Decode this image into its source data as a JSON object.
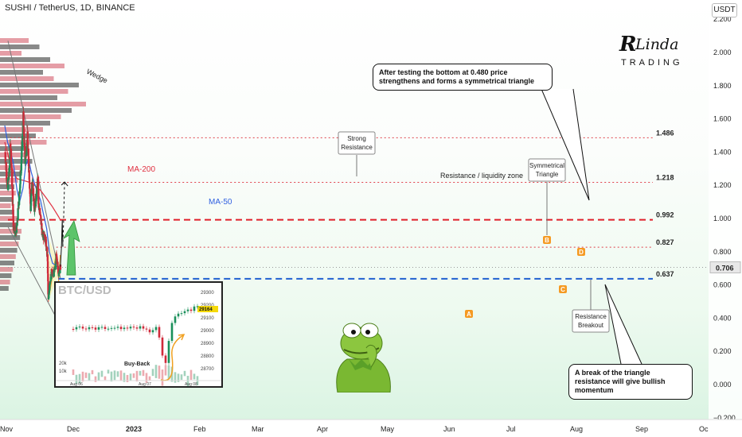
{
  "header": {
    "title": "SUSHI / TetherUS, 1D, BINANCE",
    "currency": "USDT"
  },
  "logo": {
    "text_top": "RLinda",
    "text_bottom": "TRADING"
  },
  "callouts": {
    "top": "After testing the bottom at 0.480 price strengthens and forms a symmetrical triangle",
    "bottom": "A break of the triangle resistance will give bullish momentum"
  },
  "chart_data": {
    "type": "line",
    "title": "SUSHI / TetherUS, 1D, BINANCE",
    "y_axis": {
      "ticks": [
        -0.2,
        0.0,
        0.2,
        0.4,
        0.6,
        0.8,
        1.0,
        1.2,
        1.4,
        1.6,
        1.8,
        2.0,
        2.2
      ],
      "tick_labels": [
        "−0.200",
        "0.000",
        "0.200",
        "0.400",
        "0.600",
        "0.800",
        "1.000",
        "1.200",
        "1.400",
        "1.600",
        "1.800",
        "2.000",
        "2.200"
      ],
      "ylim": [
        -0.2,
        2.2
      ],
      "last_price": 0.706,
      "last_price_label": "0.706"
    },
    "x_axis": {
      "labels": [
        "Nov",
        "Dec",
        "2023",
        "Feb",
        "Mar",
        "Apr",
        "May",
        "Jun",
        "Jul",
        "Aug",
        "Sep",
        "Oc"
      ]
    },
    "levels": [
      {
        "value": 1.486,
        "label": "1.486",
        "color": "#e0404a",
        "style": "dotted"
      },
      {
        "value": 1.218,
        "label": "1.218",
        "color": "#e0404a",
        "style": "dotted"
      },
      {
        "value": 0.992,
        "label": "0.992",
        "color": "#e0202a",
        "style": "dashed"
      },
      {
        "value": 0.827,
        "label": "0.827",
        "color": "#e0404a",
        "style": "dotted"
      },
      {
        "value": 0.637,
        "label": "0.637",
        "color": "#2060d0",
        "style": "dashed"
      }
    ],
    "series": [
      {
        "name": "MA-200",
        "color": "#e03040"
      },
      {
        "name": "MA-50",
        "color": "#3060e0"
      }
    ],
    "price_approx": [
      {
        "date": "2022-11-03",
        "value": 1.4
      },
      {
        "date": "2022-11-15",
        "value": 1.18
      },
      {
        "date": "2022-11-24",
        "value": 1.28
      },
      {
        "date": "2022-11-30",
        "value": 1.46
      },
      {
        "date": "2022-12-08",
        "value": 1.22
      },
      {
        "date": "2022-12-15",
        "value": 0.95
      },
      {
        "date": "2022-12-30",
        "value": 0.92
      },
      {
        "date": "2023-01-12",
        "value": 1.1
      },
      {
        "date": "2023-01-22",
        "value": 1.3
      },
      {
        "date": "2023-02-03",
        "value": 1.6
      },
      {
        "date": "2023-02-12",
        "value": 1.35
      },
      {
        "date": "2023-02-24",
        "value": 1.48
      },
      {
        "date": "2023-03-06",
        "value": 1.24
      },
      {
        "date": "2023-03-12",
        "value": 1.06
      },
      {
        "date": "2023-03-20",
        "value": 1.22
      },
      {
        "date": "2023-04-01",
        "value": 1.06
      },
      {
        "date": "2023-04-12",
        "value": 1.16
      },
      {
        "date": "2023-04-18",
        "value": 1.23
      },
      {
        "date": "2023-04-22",
        "value": 1.05
      },
      {
        "date": "2023-05-01",
        "value": 1.04
      },
      {
        "date": "2023-05-09",
        "value": 0.9
      },
      {
        "date": "2023-05-26",
        "value": 0.88
      },
      {
        "date": "2023-06-05",
        "value": 0.78
      },
      {
        "date": "2023-06-10",
        "value": 0.5
      },
      {
        "date": "2023-06-15",
        "value": 0.58
      },
      {
        "date": "2023-06-25",
        "value": 0.68
      },
      {
        "date": "2023-07-05",
        "value": 0.66
      },
      {
        "date": "2023-07-14",
        "value": 0.7
      },
      {
        "date": "2023-07-20",
        "value": 0.78
      },
      {
        "date": "2023-07-28",
        "value": 0.7
      },
      {
        "date": "2023-08-03",
        "value": 0.66
      },
      {
        "date": "2023-08-10",
        "value": 0.71
      }
    ],
    "ma200_approx": [
      {
        "date": "2022-11-01",
        "value": 1.46
      },
      {
        "date": "2022-12-01",
        "value": 1.32
      },
      {
        "date": "2023-01-01",
        "value": 1.24
      },
      {
        "date": "2023-02-01",
        "value": 1.23
      },
      {
        "date": "2023-03-01",
        "value": 1.22
      },
      {
        "date": "2023-04-01",
        "value": 1.2
      },
      {
        "date": "2023-05-01",
        "value": 1.17
      },
      {
        "date": "2023-06-01",
        "value": 1.12
      },
      {
        "date": "2023-07-01",
        "value": 1.07
      },
      {
        "date": "2023-08-01",
        "value": 1.01
      },
      {
        "date": "2023-08-10",
        "value": 0.99
      }
    ],
    "ma50_approx": [
      {
        "date": "2022-11-01",
        "value": 1.56
      },
      {
        "date": "2022-11-15",
        "value": 1.46
      },
      {
        "date": "2022-12-01",
        "value": 1.4
      },
      {
        "date": "2022-12-15",
        "value": 1.33
      },
      {
        "date": "2023-01-01",
        "value": 1.18
      },
      {
        "date": "2023-01-15",
        "value": 1.1
      },
      {
        "date": "2023-02-01",
        "value": 1.18
      },
      {
        "date": "2023-02-15",
        "value": 1.32
      },
      {
        "date": "2023-03-01",
        "value": 1.36
      },
      {
        "date": "2023-03-15",
        "value": 1.28
      },
      {
        "date": "2023-04-01",
        "value": 1.21
      },
      {
        "date": "2023-04-15",
        "value": 1.16
      },
      {
        "date": "2023-05-01",
        "value": 1.11
      },
      {
        "date": "2023-05-15",
        "value": 1.03
      },
      {
        "date": "2023-06-01",
        "value": 0.94
      },
      {
        "date": "2023-06-15",
        "value": 0.8
      },
      {
        "date": "2023-07-01",
        "value": 0.73
      },
      {
        "date": "2023-07-15",
        "value": 0.72
      },
      {
        "date": "2023-08-01",
        "value": 0.7
      },
      {
        "date": "2023-08-10",
        "value": 0.7
      }
    ],
    "projection": [
      {
        "date": "2023-08-10",
        "value": 0.71
      },
      {
        "date": "2023-08-15",
        "value": 0.83
      },
      {
        "date": "2023-08-19",
        "value": 0.99
      },
      {
        "date": "2023-08-22",
        "value": 0.83
      },
      {
        "date": "2023-08-26",
        "value": 0.99
      },
      {
        "date": "2023-08-31",
        "value": 1.22
      }
    ],
    "annotations": {
      "wedge": "Wedge",
      "ma200": "MA-200",
      "ma50": "MA-50",
      "strong_resistance": "Strong Resistance",
      "resistance_zone": "Resistance / liquidity zone",
      "symmetrical_triangle": "Symmetrical Triangle",
      "resistance_breakout": "Resistance Breakout",
      "point_a": "A",
      "point_b": "B",
      "point_c": "C",
      "point_d": "D"
    },
    "inset": {
      "title": "BTC/USD",
      "y_ticks": [
        "29300",
        "29200",
        "29100",
        "29000",
        "28900",
        "28800",
        "28700"
      ],
      "last_price_label": "29164",
      "x_labels": [
        "Aug 06",
        "Aug 07",
        "Aug 08"
      ],
      "volume_ticks": [
        "20k",
        "10k"
      ],
      "annotation": "Buy-Back"
    }
  }
}
